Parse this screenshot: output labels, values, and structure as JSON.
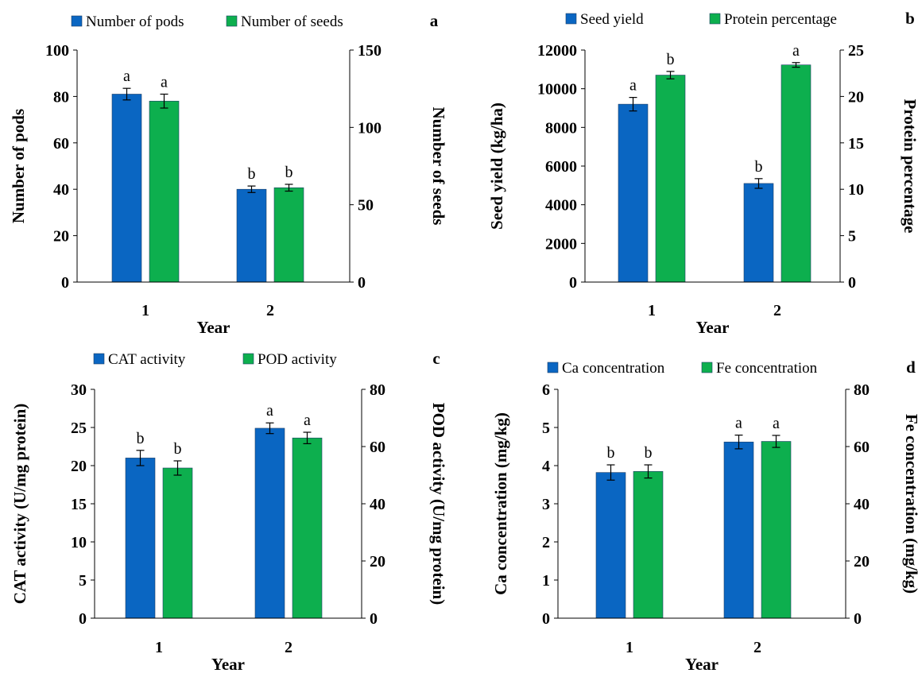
{
  "colors": {
    "blue": "#0A66C2",
    "green": "#0DAF4E",
    "axis": "#000000"
  },
  "chart_data": [
    {
      "panel": "a",
      "type": "bar",
      "categories": [
        "1",
        "2"
      ],
      "xlabel": "Year",
      "ylabel_left": "Number of pods",
      "ylabel_right": "Number of seeds",
      "yticks_left": [
        "0",
        "20",
        "40",
        "60",
        "80",
        "100"
      ],
      "yticks_right": [
        "0",
        "50",
        "100",
        "150"
      ],
      "ylim_left": [
        0,
        100
      ],
      "ylim_right": [
        0,
        150
      ],
      "series": [
        {
          "name": "Number of pods",
          "axis": "left",
          "color": "#0A66C2",
          "values": [
            81,
            40
          ],
          "errors": [
            2.5,
            1.4
          ],
          "letters": [
            "a",
            "b"
          ]
        },
        {
          "name": "Number of seeds",
          "axis": "right",
          "color": "#0DAF4E",
          "values": [
            117,
            61
          ],
          "errors": [
            4.5,
            2.2
          ],
          "letters": [
            "a",
            "b"
          ]
        }
      ]
    },
    {
      "panel": "b",
      "type": "bar",
      "categories": [
        "1",
        "2"
      ],
      "xlabel": "Year",
      "ylabel_left": "Seed yield (kg/ha)",
      "ylabel_right": "Protein percentage",
      "yticks_left": [
        "0",
        "2000",
        "4000",
        "6000",
        "8000",
        "10000",
        "12000"
      ],
      "yticks_right": [
        "0",
        "5",
        "10",
        "15",
        "20",
        "25"
      ],
      "ylim_left": [
        0,
        12000
      ],
      "ylim_right": [
        0,
        25
      ],
      "series": [
        {
          "name": "Seed yield",
          "axis": "left",
          "color": "#0A66C2",
          "values": [
            9200,
            5100
          ],
          "errors": [
            350,
            250
          ],
          "letters": [
            "a",
            "b"
          ]
        },
        {
          "name": "Protein percentage",
          "axis": "right",
          "color": "#0DAF4E",
          "values": [
            22.3,
            23.4
          ],
          "errors": [
            0.4,
            0.25
          ],
          "letters": [
            "b",
            "a"
          ]
        }
      ]
    },
    {
      "panel": "c",
      "type": "bar",
      "categories": [
        "1",
        "2"
      ],
      "xlabel": "Year",
      "ylabel_left": "CAT activity (U/mg protein)",
      "ylabel_right": "POD activity (U/mg protein)",
      "yticks_left": [
        "0",
        "5",
        "10",
        "15",
        "20",
        "25",
        "30"
      ],
      "yticks_right": [
        "0",
        "20",
        "40",
        "60",
        "80"
      ],
      "ylim_left": [
        0,
        30
      ],
      "ylim_right": [
        0,
        80
      ],
      "series": [
        {
          "name": "CAT activity",
          "axis": "left",
          "color": "#0A66C2",
          "values": [
            21,
            24.9
          ],
          "errors": [
            1,
            0.7
          ],
          "letters": [
            "b",
            "a"
          ]
        },
        {
          "name": "POD activity",
          "axis": "right",
          "color": "#0DAF4E",
          "values": [
            52.5,
            63
          ],
          "errors": [
            2.5,
            2
          ],
          "letters": [
            "b",
            "a"
          ]
        }
      ]
    },
    {
      "panel": "d",
      "type": "bar",
      "categories": [
        "1",
        "2"
      ],
      "xlabel": "Year",
      "ylabel_left": "Ca concentration (mg/kg)",
      "ylabel_right": "Fe concentration (mg/kg)",
      "yticks_left": [
        "0",
        "1",
        "2",
        "3",
        "4",
        "5",
        "6"
      ],
      "yticks_right": [
        "0",
        "20",
        "40",
        "60",
        "80"
      ],
      "ylim_left": [
        0,
        6
      ],
      "ylim_right": [
        0,
        80
      ],
      "series": [
        {
          "name": "Ca concentration",
          "axis": "left",
          "color": "#0A66C2",
          "values": [
            3.82,
            4.62
          ],
          "errors": [
            0.2,
            0.18
          ],
          "letters": [
            "b",
            "a"
          ]
        },
        {
          "name": "Fe concentration",
          "axis": "right",
          "color": "#0DAF4E",
          "values": [
            51.3,
            61.8
          ],
          "errors": [
            2.3,
            2.1
          ],
          "letters": [
            "b",
            "a"
          ]
        }
      ]
    }
  ]
}
